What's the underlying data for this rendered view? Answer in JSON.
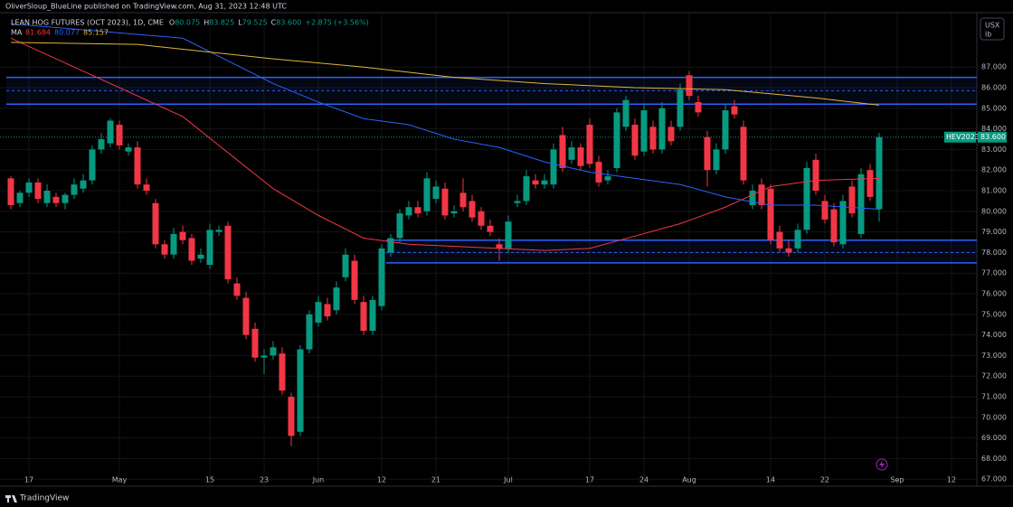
{
  "chart_data": {
    "type": "candlestick",
    "publisher": "OliverSloup_BlueLine published on TradingView.com, Aug 31, 2023 12:48 UTC",
    "title": "LEAN HOG FUTURES (OCT 2023), 1D, CME",
    "ohlc": [
      {
        "label": "O",
        "value": "80.075"
      },
      {
        "label": "H",
        "value": "83.825"
      },
      {
        "label": "L",
        "value": "79.525"
      },
      {
        "label": "C",
        "value": "83.600"
      }
    ],
    "change": "+2.875 (+3.56%)",
    "ma_label": "MA",
    "unit": [
      "USX",
      "lb"
    ],
    "symbol": "HEV2023",
    "last_price": {
      "value": 83.6,
      "label": "83.600"
    },
    "brand": "TradingView",
    "up_color": "#089981",
    "down_color": "#f23645",
    "open": [
      81.6,
      80.4,
      80.9,
      81.4,
      80.4,
      80.7,
      80.4,
      80.8,
      81.1,
      81.5,
      83.0,
      83.3,
      84.2,
      82.9,
      83.1,
      81.3,
      80.4,
      78.4,
      77.9,
      79.0,
      78.7,
      77.7,
      77.4,
      79.0,
      79.3,
      76.5,
      75.8,
      74.3,
      72.9,
      73.0,
      73.1,
      71.0,
      69.3,
      73.3,
      74.6,
      75.5,
      75.2,
      76.8,
      77.6,
      75.6,
      74.2,
      75.4,
      78.0,
      78.7,
      79.8,
      80.2,
      80.0,
      80.6,
      81.1,
      79.9,
      80.9,
      80.5,
      80.0,
      79.3,
      78.4,
      78.2,
      80.4,
      80.5,
      81.5,
      81.3,
      81.3,
      83.7,
      82.5,
      83.1,
      84.2,
      82.4,
      81.5,
      82.1,
      84.1,
      84.2,
      82.9,
      84.1,
      83.0,
      84.1,
      84.1,
      86.6,
      85.3,
      83.6,
      82.0,
      83.0,
      85.1,
      84.1,
      80.3,
      81.3,
      81.1,
      79.0,
      78.2,
      78.2,
      79.1,
      82.5,
      80.5,
      80.1,
      78.4,
      81.2,
      78.9,
      82.0,
      80.1
    ],
    "high": [
      81.7,
      81.0,
      81.6,
      81.6,
      81.3,
      80.9,
      80.9,
      81.6,
      81.8,
      83.2,
      83.8,
      84.5,
      84.4,
      83.3,
      83.4,
      81.6,
      80.6,
      78.6,
      79.2,
      79.3,
      78.9,
      78.2,
      79.4,
      79.3,
      79.5,
      76.8,
      76.1,
      74.6,
      73.3,
      73.7,
      73.4,
      71.2,
      73.5,
      75.2,
      75.9,
      75.8,
      76.6,
      78.2,
      77.9,
      75.9,
      75.9,
      78.4,
      78.9,
      80.1,
      80.5,
      80.5,
      81.9,
      81.5,
      81.4,
      80.3,
      81.6,
      80.8,
      80.2,
      79.6,
      78.7,
      79.8,
      80.8,
      82.0,
      81.8,
      81.8,
      83.3,
      84.1,
      83.4,
      83.3,
      84.5,
      82.7,
      82.0,
      85.0,
      85.6,
      84.5,
      85.2,
      84.4,
      85.3,
      84.4,
      86.2,
      86.8,
      85.6,
      83.9,
      83.3,
      85.2,
      85.4,
      84.4,
      81.3,
      81.6,
      81.3,
      79.3,
      78.6,
      79.4,
      82.4,
      82.8,
      80.8,
      80.4,
      80.8,
      81.5,
      82.1,
      82.3,
      83.8
    ],
    "low": [
      80.1,
      80.2,
      80.7,
      80.4,
      80.2,
      80.2,
      80.1,
      80.6,
      80.9,
      81.3,
      82.8,
      83.1,
      83.0,
      82.7,
      81.1,
      80.8,
      78.2,
      77.7,
      77.7,
      78.4,
      77.4,
      77.5,
      77.2,
      78.8,
      76.5,
      75.7,
      73.8,
      72.7,
      72.1,
      72.8,
      71.1,
      68.6,
      69.1,
      73.1,
      74.4,
      74.7,
      75.0,
      76.6,
      75.5,
      74.0,
      74.0,
      75.2,
      77.8,
      78.5,
      79.6,
      79.7,
      79.8,
      80.4,
      79.6,
      79.7,
      80.0,
      79.5,
      79.1,
      78.8,
      77.6,
      78.0,
      80.2,
      80.3,
      81.1,
      81.1,
      81.1,
      81.9,
      82.3,
      82.0,
      82.1,
      81.2,
      81.3,
      81.9,
      83.9,
      82.5,
      82.7,
      82.8,
      82.8,
      83.2,
      83.9,
      85.4,
      84.6,
      81.2,
      81.8,
      82.8,
      84.5,
      81.3,
      80.1,
      80.1,
      78.4,
      78.0,
      77.8,
      78.0,
      78.9,
      80.8,
      79.4,
      78.3,
      78.2,
      79.7,
      78.7,
      80.5,
      79.5
    ],
    "close": [
      80.3,
      80.9,
      81.4,
      80.6,
      81.0,
      80.4,
      80.8,
      81.3,
      81.5,
      83.0,
      83.5,
      84.4,
      83.2,
      83.1,
      81.3,
      81.0,
      78.4,
      77.9,
      78.9,
      78.6,
      77.6,
      77.9,
      79.1,
      79.1,
      76.7,
      75.9,
      74.0,
      72.9,
      73.0,
      73.4,
      71.3,
      69.1,
      73.3,
      75.0,
      75.6,
      74.9,
      76.3,
      77.9,
      75.7,
      74.2,
      75.7,
      78.2,
      78.7,
      79.9,
      80.2,
      79.9,
      81.6,
      81.2,
      79.8,
      80.0,
      80.2,
      79.7,
      79.3,
      79.0,
      78.2,
      79.5,
      80.5,
      81.7,
      81.3,
      81.5,
      83.0,
      82.1,
      83.1,
      82.2,
      82.3,
      81.4,
      81.7,
      84.8,
      85.4,
      82.7,
      84.9,
      83.0,
      85.0,
      83.4,
      85.9,
      85.6,
      84.8,
      82.0,
      83.0,
      84.9,
      84.7,
      81.5,
      81.0,
      80.3,
      78.6,
      78.2,
      78.0,
      79.1,
      82.1,
      81.0,
      79.6,
      78.5,
      80.5,
      79.9,
      81.8,
      80.7,
      83.6
    ],
    "series": [
      {
        "color": "#f23645",
        "legend_value": "81.684",
        "x": [
          0,
          9,
          19,
          29,
          34,
          39,
          44,
          49,
          54,
          59,
          64,
          69,
          74,
          79,
          84,
          89,
          96
        ],
        "values": [
          88.4,
          86.6,
          84.6,
          81.1,
          79.8,
          78.7,
          78.4,
          78.3,
          78.2,
          78.1,
          78.2,
          78.8,
          79.4,
          80.2,
          81.2,
          81.5,
          81.6
        ]
      },
      {
        "color": "#2962ff",
        "legend_value": "80.077",
        "x": [
          0,
          19,
          24,
          29,
          34,
          39,
          44,
          49,
          54,
          59,
          64,
          69,
          74,
          79,
          84,
          89,
          96
        ],
        "values": [
          89.1,
          88.4,
          87.3,
          86.2,
          85.3,
          84.5,
          84.2,
          83.5,
          83.1,
          82.4,
          81.9,
          81.6,
          81.3,
          80.7,
          80.3,
          80.3,
          80.1
        ]
      },
      {
        "color": "#e0b73a",
        "legend_value": "85.157",
        "x": [
          0,
          14,
          29,
          39,
          49,
          59,
          69,
          79,
          89,
          96
        ],
        "values": [
          88.2,
          88.1,
          87.4,
          87.0,
          86.5,
          86.2,
          86.0,
          85.9,
          85.5,
          85.15
        ]
      }
    ],
    "zones": [
      {
        "start": 0,
        "top": 86.5,
        "mid": 85.85,
        "bottom": 85.2
      },
      {
        "start": 42,
        "top": 78.6,
        "mid": 78.0,
        "bottom": 77.5
      }
    ],
    "zone_color": "#2962ff",
    "ylim": [
      89.64,
      66.66
    ],
    "yticks": [
      {
        "value": 87,
        "label": "87.000"
      },
      {
        "value": 86,
        "label": "86.000"
      },
      {
        "value": 85,
        "label": "85.000"
      },
      {
        "value": 84,
        "label": "84.000"
      },
      {
        "value": 83,
        "label": "83.000"
      },
      {
        "value": 82,
        "label": "82.000"
      },
      {
        "value": 81,
        "label": "81.000"
      },
      {
        "value": 80,
        "label": "80.000"
      },
      {
        "value": 79,
        "label": "79.000"
      },
      {
        "value": 78,
        "label": "78.000"
      },
      {
        "value": 77,
        "label": "77.000"
      },
      {
        "value": 76,
        "label": "76.000"
      },
      {
        "value": 75,
        "label": "75.000"
      },
      {
        "value": 74,
        "label": "74.000"
      },
      {
        "value": 73,
        "label": "73.000"
      },
      {
        "value": 72,
        "label": "72.000"
      },
      {
        "value": 71,
        "label": "71.000"
      },
      {
        "value": 70,
        "label": "70.000"
      },
      {
        "value": 69,
        "label": "69.000"
      },
      {
        "value": 68,
        "label": "68.000"
      },
      {
        "value": 67,
        "label": "67.000"
      }
    ],
    "xticks": [
      {
        "value": 2,
        "label": "17"
      },
      {
        "value": 12,
        "label": "May"
      },
      {
        "value": 22,
        "label": "15"
      },
      {
        "value": 28,
        "label": "23"
      },
      {
        "value": 34,
        "label": "Jun"
      },
      {
        "value": 41,
        "label": "12"
      },
      {
        "value": 47,
        "label": "21"
      },
      {
        "value": 55,
        "label": "Jul"
      },
      {
        "value": 64,
        "label": "17"
      },
      {
        "value": 70,
        "label": "24"
      },
      {
        "value": 75,
        "label": "Aug"
      },
      {
        "value": 84,
        "label": "14"
      },
      {
        "value": 90,
        "label": "22"
      },
      {
        "value": 98,
        "label": "Sep"
      },
      {
        "value": 104,
        "label": "12"
      }
    ],
    "grid": true
  }
}
